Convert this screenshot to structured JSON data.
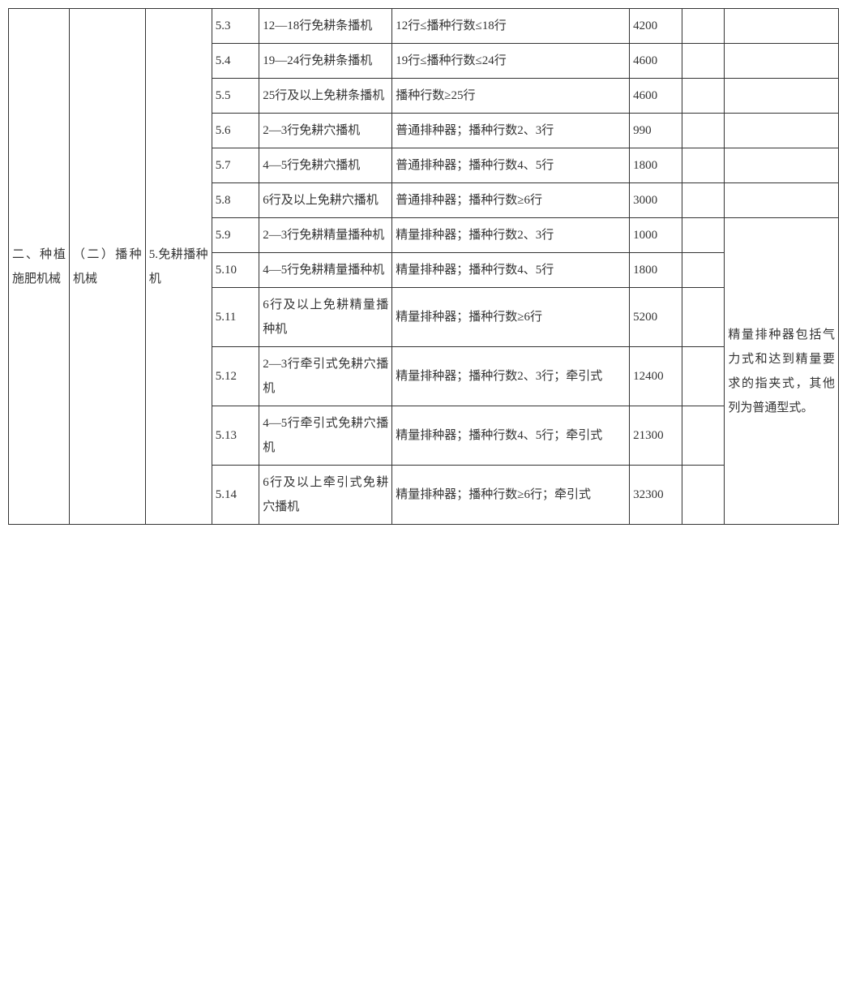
{
  "col1": "二、种植施肥机械",
  "col2": "（二）播种机械",
  "col3": "5.免耕播种机",
  "note": "精量排种器包括气力式和达到精量要求的指夹式，其他列为普通型式。",
  "rows": [
    {
      "idx": "5.3",
      "name": "12—18行免耕条播机",
      "spec": "12行≤播种行数≤18行",
      "val": "4200",
      "c8": "",
      "c9": ""
    },
    {
      "idx": "5.4",
      "name": "19—24行免耕条播机",
      "spec": "19行≤播种行数≤24行",
      "val": "4600",
      "c8": "",
      "c9": ""
    },
    {
      "idx": "5.5",
      "name": "25行及以上免耕条播机",
      "spec": "播种行数≥25行",
      "val": "4600",
      "c8": "",
      "c9": ""
    },
    {
      "idx": "5.6",
      "name": "2—3行免耕穴播机",
      "spec": "普通排种器；播种行数2、3行",
      "val": "990",
      "c8": "",
      "c9": ""
    },
    {
      "idx": "5.7",
      "name": "4—5行免耕穴播机",
      "spec": "普通排种器；播种行数4、5行",
      "val": "1800",
      "c8": "",
      "c9": ""
    },
    {
      "idx": "5.8",
      "name": "6行及以上免耕穴播机",
      "spec": "普通排种器；播种行数≥6行",
      "val": "3000",
      "c8": "",
      "c9": ""
    },
    {
      "idx": "5.9",
      "name": "2—3行免耕精量播种机",
      "spec": "精量排种器；播种行数2、3行",
      "val": "1000",
      "c8": ""
    },
    {
      "idx": "5.10",
      "name": "4—5行免耕精量播种机",
      "spec": "精量排种器；播种行数4、5行",
      "val": "1800",
      "c8": ""
    },
    {
      "idx": "5.11",
      "name": "6行及以上免耕精量播种机",
      "spec": "精量排种器；播种行数≥6行",
      "val": "5200",
      "c8": ""
    },
    {
      "idx": "5.12",
      "name": "2—3行牵引式免耕穴播机",
      "spec": "精量排种器；播种行数2、3行；牵引式",
      "val": "12400",
      "c8": ""
    },
    {
      "idx": "5.13",
      "name": "4—5行牵引式免耕穴播机",
      "spec": "精量排种器；播种行数4、5行；牵引式",
      "val": "21300",
      "c8": ""
    },
    {
      "idx": "5.14",
      "name": "6行及以上牵引式免耕穴播机",
      "spec": "精量排种器；播种行数≥6行；牵引式",
      "val": "32300",
      "c8": ""
    }
  ]
}
